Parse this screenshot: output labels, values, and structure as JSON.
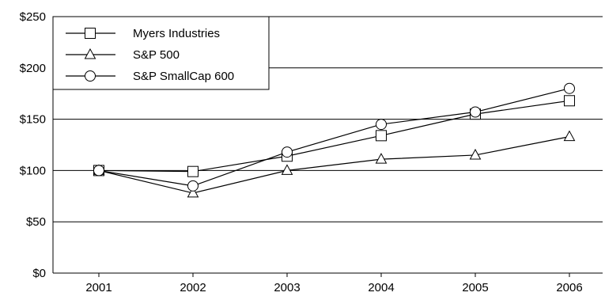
{
  "chart_data": {
    "type": "line",
    "x": [
      "2001",
      "2002",
      "2003",
      "2004",
      "2005",
      "2006"
    ],
    "series": [
      {
        "name": "Myers Industries",
        "marker": "square",
        "values": [
          100,
          99,
          114,
          134,
          155,
          168
        ]
      },
      {
        "name": "S&P 500",
        "marker": "triangle",
        "values": [
          100,
          78,
          100,
          111,
          115,
          133
        ]
      },
      {
        "name": "S&P SmallCap 600",
        "marker": "circle",
        "values": [
          100,
          85,
          118,
          145,
          157,
          180
        ]
      }
    ],
    "y_ticks": [
      0,
      50,
      100,
      150,
      200,
      250
    ],
    "y_tick_labels": [
      "$0",
      "$50",
      "$100",
      "$150",
      "$200",
      "$250"
    ],
    "ylim": [
      0,
      250
    ],
    "grid": "horizontal",
    "legend_position": "top-left",
    "line_color": "#000000",
    "marker_fill": "#ffffff",
    "grid_color": "#000000"
  }
}
